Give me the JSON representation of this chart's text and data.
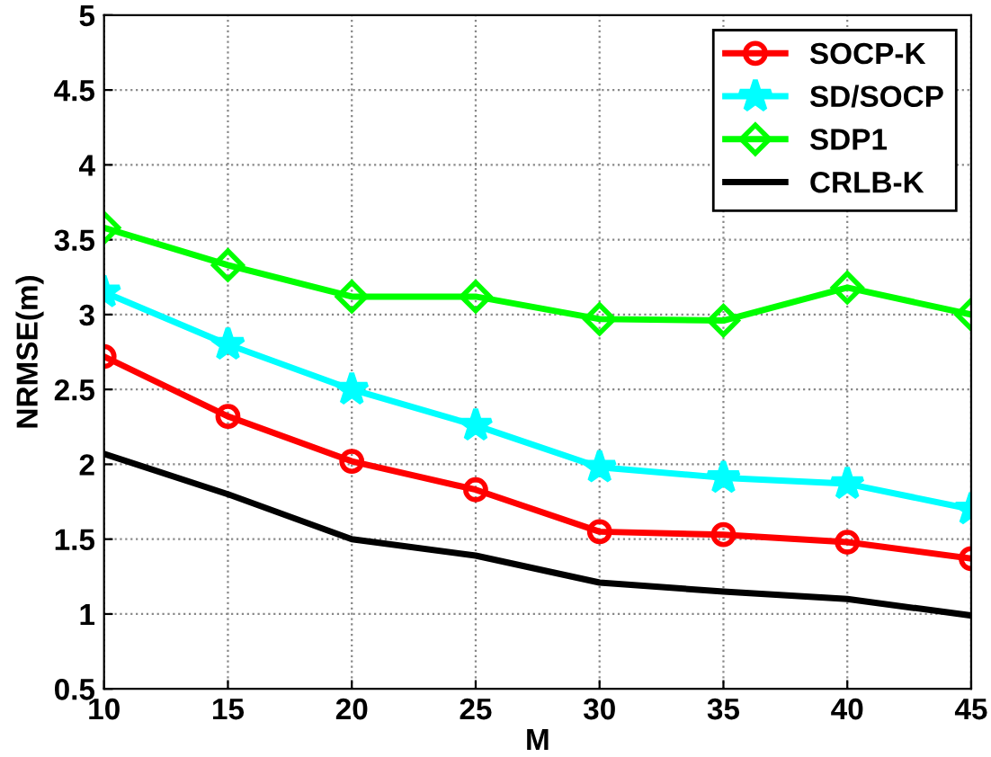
{
  "chart_data": {
    "type": "line",
    "xlabel": "M",
    "ylabel": "NRMSE(m)",
    "x": [
      10,
      15,
      20,
      25,
      30,
      35,
      40,
      45
    ],
    "series": [
      {
        "name": "SOCP-K",
        "color": "#ff0000",
        "marker": "circle",
        "values": [
          2.72,
          2.32,
          2.02,
          1.83,
          1.55,
          1.53,
          1.48,
          1.37
        ]
      },
      {
        "name": "SD/SOCP",
        "color": "#00ffff",
        "marker": "star",
        "values": [
          3.15,
          2.8,
          2.5,
          2.26,
          1.98,
          1.91,
          1.87,
          1.7
        ]
      },
      {
        "name": "SDP1",
        "color": "#00ff00",
        "marker": "diamond",
        "values": [
          3.58,
          3.33,
          3.12,
          3.12,
          2.97,
          2.96,
          3.18,
          3.0
        ]
      },
      {
        "name": "CRLB-K",
        "color": "#000000",
        "marker": "none",
        "values": [
          2.07,
          1.8,
          1.5,
          1.39,
          1.21,
          1.15,
          1.1,
          0.99
        ]
      }
    ],
    "xlim": [
      10,
      45
    ],
    "ylim": [
      0.5,
      5
    ],
    "xticks": [
      10,
      15,
      20,
      25,
      30,
      35,
      40,
      45
    ],
    "yticks": [
      0.5,
      1,
      1.5,
      2,
      2.5,
      3,
      3.5,
      4,
      4.5,
      5
    ],
    "grid": true,
    "legend": "top right",
    "line_style": "solid"
  }
}
